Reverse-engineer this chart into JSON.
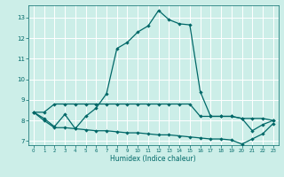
{
  "title": "",
  "xlabel": "Humidex (Indice chaleur)",
  "bg_color": "#cceee8",
  "line_color": "#006868",
  "grid_color": "#ffffff",
  "xlim": [
    -0.5,
    23.5
  ],
  "ylim": [
    6.8,
    13.6
  ],
  "yticks": [
    7,
    8,
    9,
    10,
    11,
    12,
    13
  ],
  "xticks": [
    0,
    1,
    2,
    3,
    4,
    5,
    6,
    7,
    8,
    9,
    10,
    11,
    12,
    13,
    14,
    15,
    16,
    17,
    18,
    19,
    20,
    21,
    22,
    23
  ],
  "series_main": [
    8.4,
    8.1,
    7.7,
    8.3,
    7.6,
    8.2,
    8.6,
    9.3,
    11.5,
    11.8,
    12.3,
    12.6,
    13.35,
    12.9,
    12.7,
    12.65,
    9.4,
    8.2,
    8.2,
    8.2,
    8.1,
    7.5,
    7.8,
    8.0
  ],
  "series_upper": [
    8.4,
    8.4,
    8.8,
    8.8,
    8.8,
    8.8,
    8.8,
    8.8,
    8.8,
    8.8,
    8.8,
    8.8,
    8.8,
    8.8,
    8.8,
    8.8,
    8.2,
    8.2,
    8.2,
    8.2,
    8.1,
    8.1,
    8.1,
    8.0
  ],
  "series_lower": [
    8.4,
    8.0,
    7.65,
    7.65,
    7.6,
    7.55,
    7.5,
    7.5,
    7.45,
    7.4,
    7.4,
    7.35,
    7.3,
    7.3,
    7.25,
    7.2,
    7.15,
    7.1,
    7.1,
    7.05,
    6.85,
    7.1,
    7.35,
    7.85
  ]
}
